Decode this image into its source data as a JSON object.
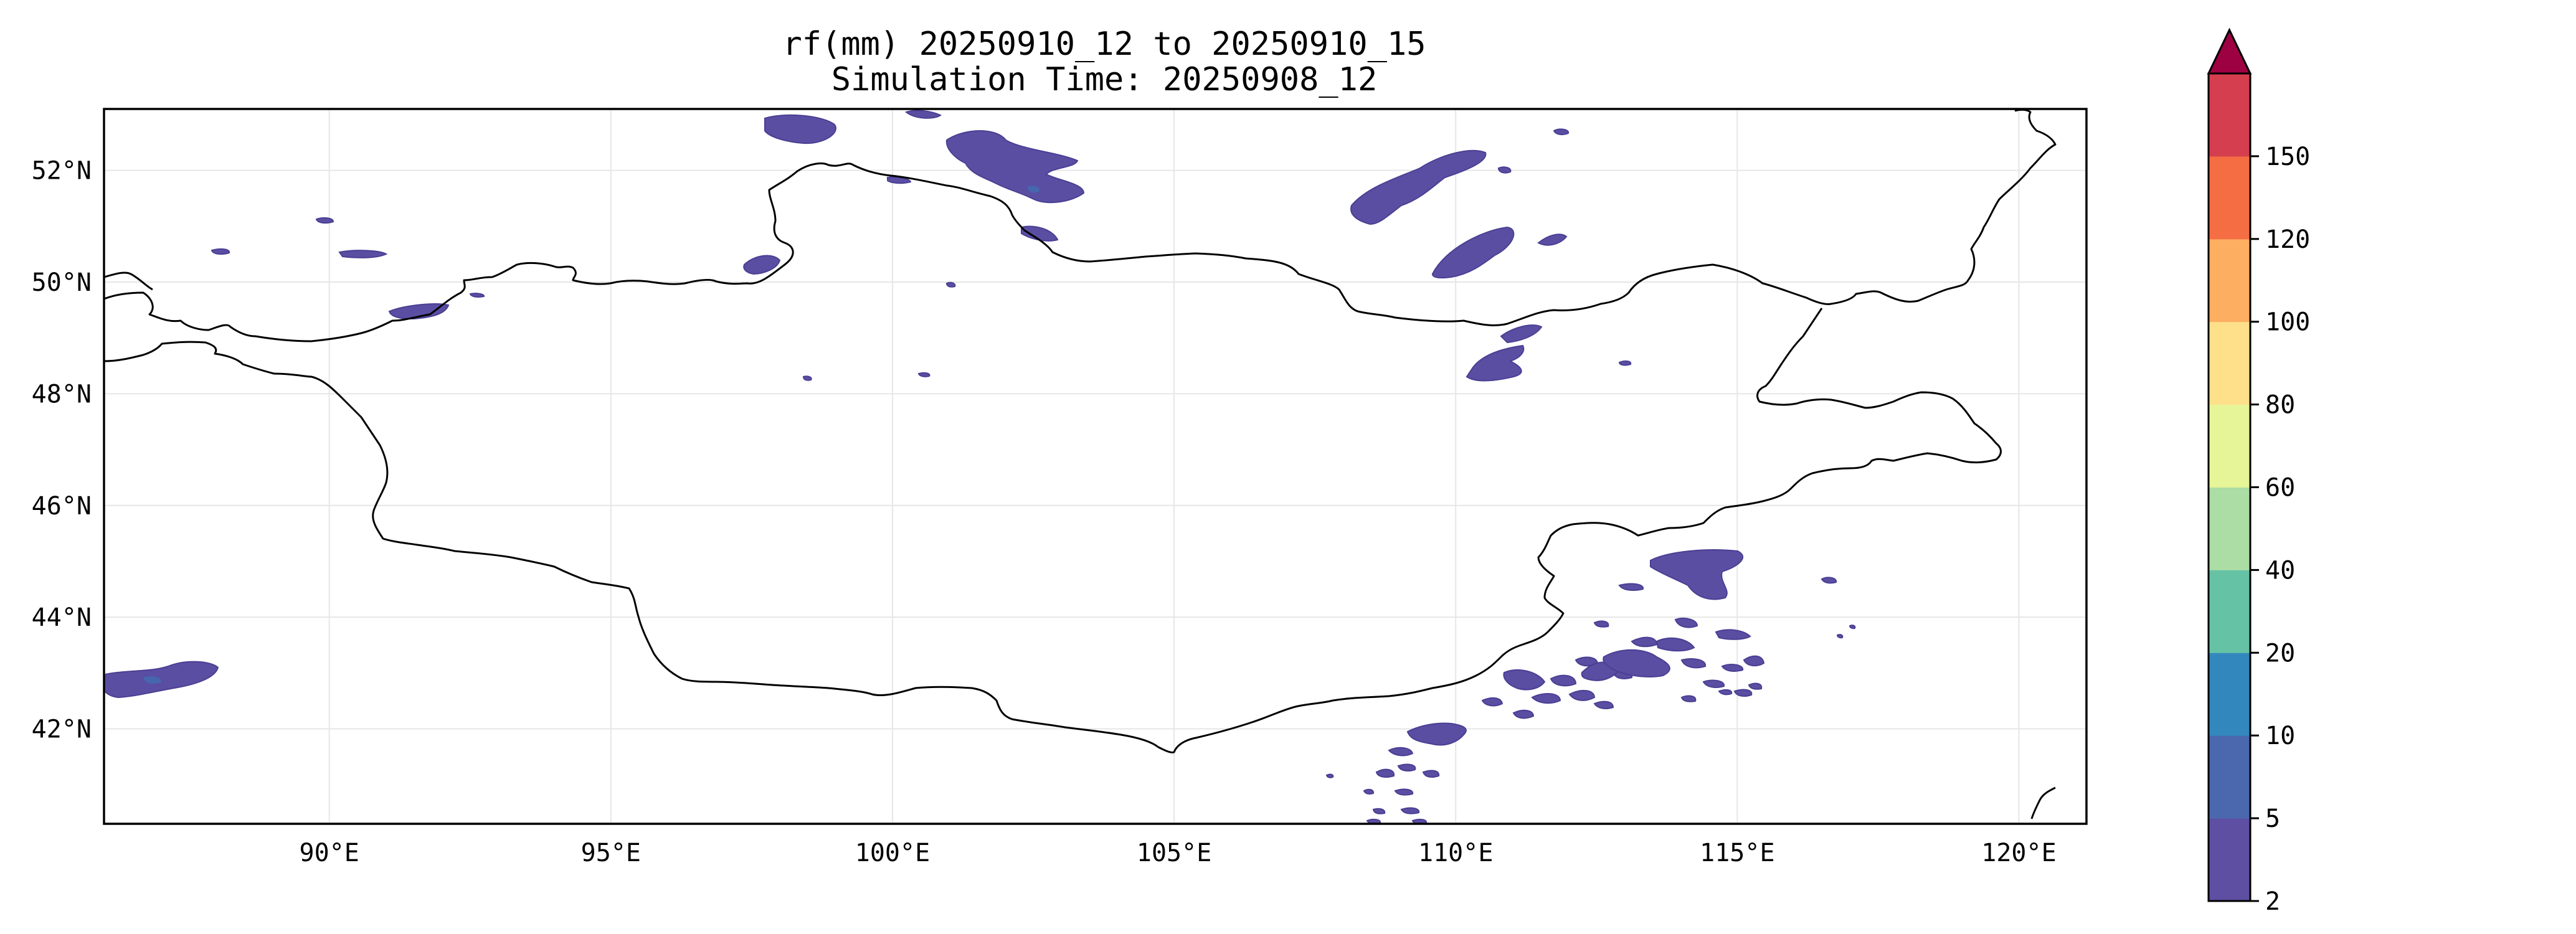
{
  "map": {
    "title_line1": "rf(mm) 20250910_12 to 20250910_15",
    "title_line2": "Simulation Time: 20250908_12",
    "extent": {
      "lon_min": 86,
      "lon_max": 121.2,
      "lat_min": 40.3,
      "lat_max": 53.1
    },
    "lon_ticks": [
      {
        "value": 90,
        "label": "90°E"
      },
      {
        "value": 95,
        "label": "95°E"
      },
      {
        "value": 100,
        "label": "100°E"
      },
      {
        "value": 105,
        "label": "105°E"
      },
      {
        "value": 110,
        "label": "110°E"
      },
      {
        "value": 115,
        "label": "115°E"
      },
      {
        "value": 120,
        "label": "120°E"
      }
    ],
    "lat_ticks": [
      {
        "value": 42,
        "label": "42°N"
      },
      {
        "value": 44,
        "label": "44°N"
      },
      {
        "value": 46,
        "label": "46°N"
      },
      {
        "value": 48,
        "label": "48°N"
      },
      {
        "value": 50,
        "label": "50°N"
      },
      {
        "value": 52,
        "label": "52°N"
      }
    ],
    "colors": {
      "lowest_rain": "#5a4ea3",
      "second_rain": "#4667ad",
      "border": "#000000",
      "grid": "#e6e6e6"
    }
  },
  "colorbar": {
    "levels": [
      "2",
      "5",
      "10",
      "20",
      "40",
      "60",
      "80",
      "100",
      "120",
      "150"
    ],
    "colors": [
      "#5e4fa2",
      "#4b68ae",
      "#3288bd",
      "#66c2a5",
      "#abdda4",
      "#e6f598",
      "#fee08b",
      "#fdae61",
      "#f46d43",
      "#d53e4f"
    ],
    "extend_color": "#9e0142"
  }
}
